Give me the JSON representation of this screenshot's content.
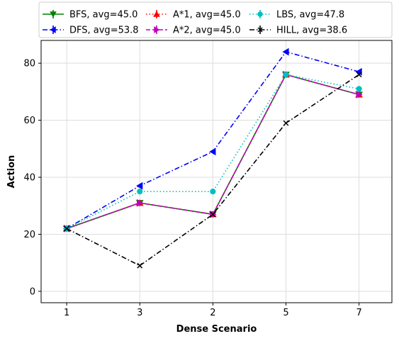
{
  "chart_data": {
    "type": "line",
    "title": "",
    "xlabel": "Dense Scenario",
    "ylabel": "Action",
    "categories": [
      "1",
      "3",
      "2",
      "5",
      "7"
    ],
    "ylim": [
      -4,
      88
    ],
    "yticks": [
      0,
      20,
      40,
      60,
      80
    ],
    "grid": true,
    "legend_position": "top",
    "series": [
      {
        "name": "BFS, avg=45.0",
        "values": [
          22,
          31,
          27,
          76,
          69
        ],
        "color": "#008000",
        "dash": "solid",
        "marker": "tri-down"
      },
      {
        "name": "DFS, avg=53.8",
        "values": [
          22,
          37,
          49,
          84,
          77
        ],
        "color": "#0000ff",
        "dash": "dashdot",
        "marker": "tri-left"
      },
      {
        "name": "A*1, avg=45.0",
        "values": [
          22,
          31,
          27,
          76,
          69
        ],
        "color": "#ff0000",
        "dash": "dotted",
        "marker": "tri-up"
      },
      {
        "name": "A*2, avg=45.0",
        "values": [
          22,
          31,
          27,
          76,
          69
        ],
        "color": "#bf00bf",
        "dash": "dashed",
        "marker": "tri-right"
      },
      {
        "name": "LBS, avg=47.8",
        "values": [
          22,
          35,
          35,
          76,
          71
        ],
        "color": "#00bfbf",
        "dash": "dotted",
        "marker": "circle"
      },
      {
        "name": "HILL, avg=38.6",
        "values": [
          22,
          9,
          27,
          59,
          76
        ],
        "color": "#000000",
        "dash": "dashdot",
        "marker": "x"
      }
    ]
  }
}
